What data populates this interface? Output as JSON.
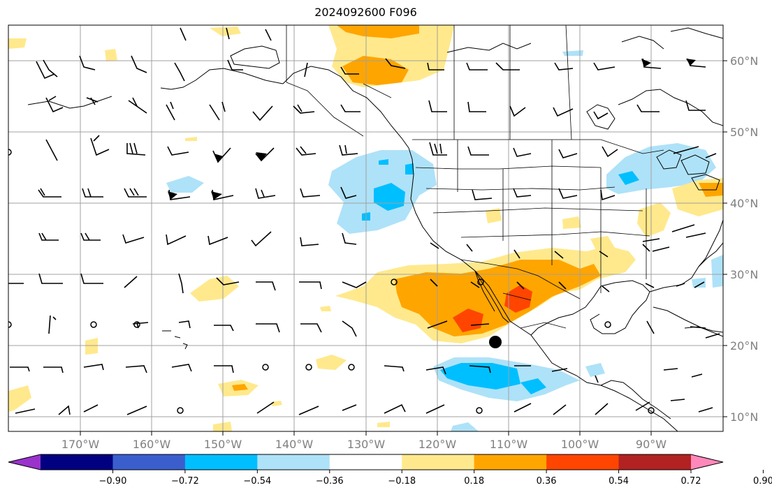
{
  "title": "2024092600 F096",
  "lon_labels": [
    "170°W",
    "160°W",
    "150°W",
    "140°W",
    "130°W",
    "120°W",
    "110°W",
    "100°W",
    "90°W"
  ],
  "lat_labels": [
    "60°N",
    "50°N",
    "40°N",
    "30°N",
    "20°N",
    "10°N"
  ],
  "lon_range": [
    -180,
    -80
  ],
  "lat_range": [
    8,
    66
  ],
  "colorbar": {
    "colors": [
      "#9933cc",
      "#000080",
      "#3a5fcd",
      "#00bfff",
      "#aee2f8",
      "#ffffff",
      "#ffe98c",
      "#ffa500",
      "#ff4500",
      "#b22222",
      "#ff88bb"
    ],
    "ticks": [
      "−0.90",
      "−0.72",
      "−0.54",
      "−0.36",
      "−0.18",
      "0.18",
      "0.36",
      "0.54",
      "0.72",
      "0.90"
    ]
  },
  "storm_marker": {
    "lon": -112,
    "lat": 20.5
  }
}
